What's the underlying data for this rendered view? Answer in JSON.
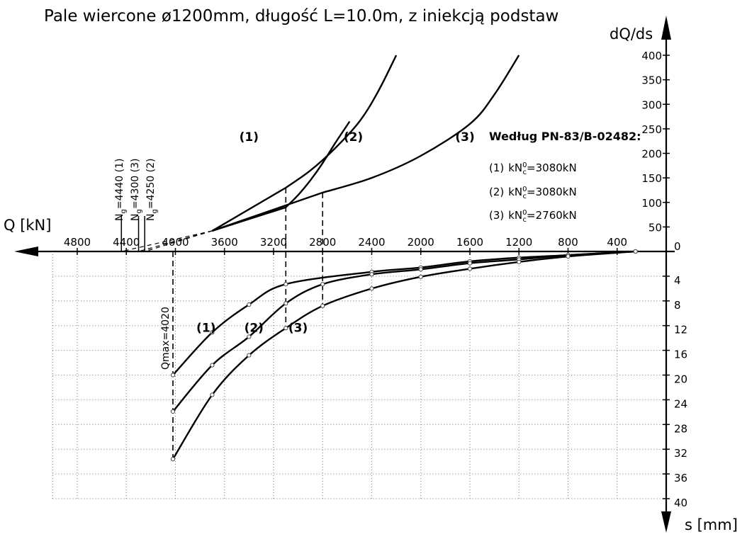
{
  "chart_data": {
    "type": "line",
    "title": "Pale wiercone ø1200mm, długość L=10.0m, z iniekcją podstaw",
    "x_axis": {
      "label": "Q [kN]",
      "direction": "increasing-to-left",
      "range": [
        0,
        5600
      ],
      "ticks": [
        4800,
        4400,
        4000,
        3600,
        3200,
        2800,
        2400,
        2000,
        1600,
        1200,
        800,
        400
      ]
    },
    "y_axis_top": {
      "label": "dQ/ds",
      "range": [
        0,
        400
      ],
      "ticks": [
        400,
        350,
        300,
        250,
        200,
        150,
        100,
        50,
        0
      ]
    },
    "y_axis_bottom": {
      "label": "s [mm]",
      "direction": "down",
      "range": [
        0,
        40
      ],
      "ticks": [
        0,
        4,
        8,
        12,
        16,
        20,
        24,
        28,
        32,
        36,
        40
      ]
    },
    "grid": true,
    "settlement_series": [
      {
        "name": "(1)",
        "Q": [
          250,
          800,
          1200,
          1600,
          2000,
          2400,
          3100,
          3400,
          3700,
          4020
        ],
        "s": [
          0.0,
          0.6,
          1.0,
          1.6,
          2.6,
          3.3,
          5.3,
          8.6,
          13.1,
          20.0
        ]
      },
      {
        "name": "(2)",
        "Q": [
          250,
          800,
          1200,
          1600,
          2000,
          2400,
          2800,
          3100,
          3400,
          3700,
          4020
        ],
        "s": [
          0.0,
          0.6,
          1.3,
          1.9,
          2.9,
          3.7,
          5.3,
          8.4,
          13.8,
          18.4,
          25.9
        ]
      },
      {
        "name": "(3)",
        "Q": [
          250,
          800,
          1200,
          1600,
          2000,
          2400,
          2800,
          3100,
          3400,
          3700,
          4020
        ],
        "s": [
          0.0,
          0.8,
          1.7,
          2.8,
          4.1,
          6.0,
          8.8,
          12.4,
          16.8,
          23.2,
          33.6
        ]
      }
    ],
    "stiffness_series": [
      {
        "name": "(1)",
        "Q": [
          3100,
          2900,
          2700,
          2500,
          2350,
          2200
        ],
        "dQds": [
          130,
          165,
          210,
          265,
          325,
          400
        ]
      },
      {
        "name": "(2)",
        "Q": [
          3100,
          3000,
          2900,
          2800,
          2700,
          2580
        ],
        "dQds": [
          90,
          115,
          145,
          180,
          220,
          265
        ]
      },
      {
        "name": "(3)",
        "Q": [
          2800,
          2400,
          2000,
          1600,
          1400,
          1200
        ],
        "dQds": [
          120,
          150,
          195,
          260,
          320,
          400
        ]
      }
    ],
    "extrapolations": [
      {
        "name": "(1)",
        "label": "N_g=4440 (1)",
        "Ng": 4440
      },
      {
        "name": "(3)",
        "label": "N_g=4300 (3)",
        "Ng": 4300
      },
      {
        "name": "(2)",
        "label": "N_g=4250 (2)",
        "Ng": 4250
      }
    ],
    "annotations": {
      "qmax_label": "Qmax=4020",
      "qmax_value": 4020,
      "marker_Q": [
        3100,
        2800
      ],
      "curve_labels": [
        "(1)",
        "(2)",
        "(3)"
      ],
      "standard_heading": "Według PN-83/B-02482:",
      "standard_items": [
        {
          "prefix": "(1)",
          "value": "kN",
          "sup": "0",
          "sub": "c",
          "rest": "=3080kN"
        },
        {
          "prefix": "(2)",
          "value": "kN",
          "sup": "0",
          "sub": "c",
          "rest": "=3080kN"
        },
        {
          "prefix": "(3)",
          "value": "kN",
          "sup": "0",
          "sub": "c",
          "rest": "=2760kN"
        }
      ],
      "ng_labels": [
        {
          "N": "N",
          "sub": "g",
          "rest": "=4440 (1)"
        },
        {
          "N": "N",
          "sub": "g",
          "rest": "=4300 (3)"
        },
        {
          "N": "N",
          "sub": "g",
          "rest": "=4250 (2)"
        }
      ]
    }
  }
}
